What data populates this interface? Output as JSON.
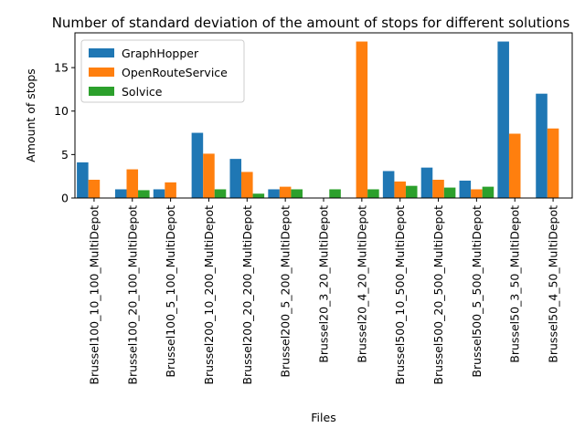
{
  "chart_data": {
    "type": "bar",
    "title": "Number of standard deviation of the amount of stops for different solutions",
    "xlabel": "Files",
    "ylabel": "Amount of stops",
    "ylim": [
      0,
      19
    ],
    "yticks": [
      0,
      5,
      10,
      15
    ],
    "legend_position": "top-left",
    "grid": false,
    "categories": [
      "Brussel100_10_100_MultiDepot",
      "Brussel100_20_100_MultiDepot",
      "Brussel100_5_100_MultiDepot",
      "Brussel200_10_200_MultiDepot",
      "Brussel200_20_200_MultiDepot",
      "Brussel200_5_200_MultiDepot",
      "Brussel20_3_20_MultiDepot",
      "Brussel20_4_20_MultiDepot",
      "Brussel500_10_500_MultiDepot",
      "Brussel500_20_500_MultiDepot",
      "Brussel500_5_500_MultiDepot",
      "Brussel50_3_50_MultiDepot",
      "Brussel50_4_50_MultiDepot"
    ],
    "series": [
      {
        "name": "GraphHopper",
        "color": "#1f77b4",
        "values": [
          4.1,
          1.0,
          1.0,
          7.5,
          4.5,
          1.0,
          0,
          0,
          3.1,
          3.5,
          2.0,
          18.0,
          12.0
        ]
      },
      {
        "name": "OpenRouteService",
        "color": "#ff7f0e",
        "values": [
          2.1,
          3.3,
          1.8,
          5.1,
          3.0,
          1.3,
          0,
          18.0,
          1.9,
          2.1,
          1.0,
          7.4,
          8.0
        ]
      },
      {
        "name": "Solvice",
        "color": "#2ca02c",
        "values": [
          0,
          0.9,
          0,
          1.0,
          0.5,
          1.0,
          1.0,
          1.0,
          1.4,
          1.2,
          1.3,
          0,
          0
        ]
      }
    ]
  }
}
